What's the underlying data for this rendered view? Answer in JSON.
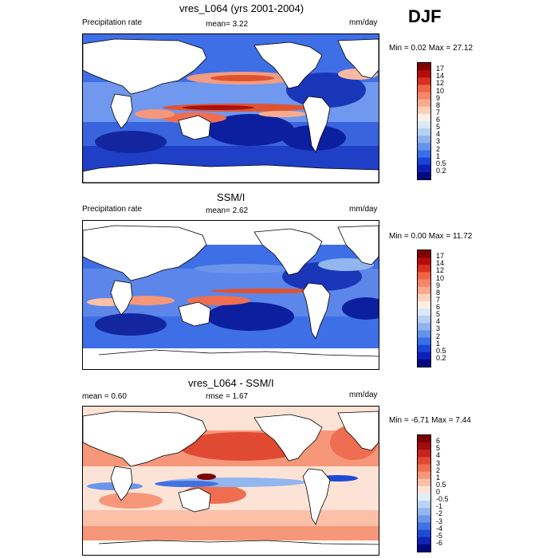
{
  "season": "DJF",
  "panels": [
    {
      "title": "vres_L064 (yrs 2001-2004)",
      "left_label": "Precipitation rate",
      "mid_label": "mean=  3.22",
      "right_label": "mm/day",
      "minmax": "Min =  0.02 Max =  27.12"
    },
    {
      "title": "SSM/I",
      "left_label": "Precipitation rate",
      "mid_label": "mean=  2.62",
      "right_label": "mm/day",
      "minmax": "Min =  0.00 Max =  11.72"
    },
    {
      "title": "vres_L064 - SSM/I",
      "left_label": "mean =  0.60",
      "mid_label": "rmse =  1.67",
      "right_label": "mm/day",
      "minmax": "Min =  -6.71 Max =   7.44"
    }
  ],
  "colorbars": {
    "precip_levels": [
      "17",
      "14",
      "12",
      "10",
      "9",
      "8",
      "7",
      "6",
      "5",
      "4",
      "3",
      "2",
      "1",
      "0.5",
      "0.2"
    ],
    "precip_colors": [
      "#800000",
      "#b40c0c",
      "#d7301f",
      "#ef6548",
      "#f4866a",
      "#f9ab8f",
      "#fcd1bc",
      "#fbeee4",
      "#dbe8f8",
      "#b6d0f2",
      "#8fb3ee",
      "#6693ea",
      "#3a6fe5",
      "#1a44d6",
      "#0b1fb8",
      "#000a80"
    ],
    "diff_levels": [
      "6",
      "5",
      "4",
      "3",
      "2",
      "1",
      "0.5",
      "0",
      "-0.5",
      "-1",
      "-2",
      "-3",
      "-4",
      "-5",
      "-6"
    ],
    "diff_colors": [
      "#800000",
      "#a30c0c",
      "#c8251d",
      "#e04a33",
      "#ef6e52",
      "#f7977a",
      "#fcc0a8",
      "#fde3d6",
      "#e1ecfa",
      "#bcd3f4",
      "#92b6ee",
      "#6a95ea",
      "#4271e2",
      "#1e4ad6",
      "#0e24b2",
      "#000a80"
    ]
  }
}
